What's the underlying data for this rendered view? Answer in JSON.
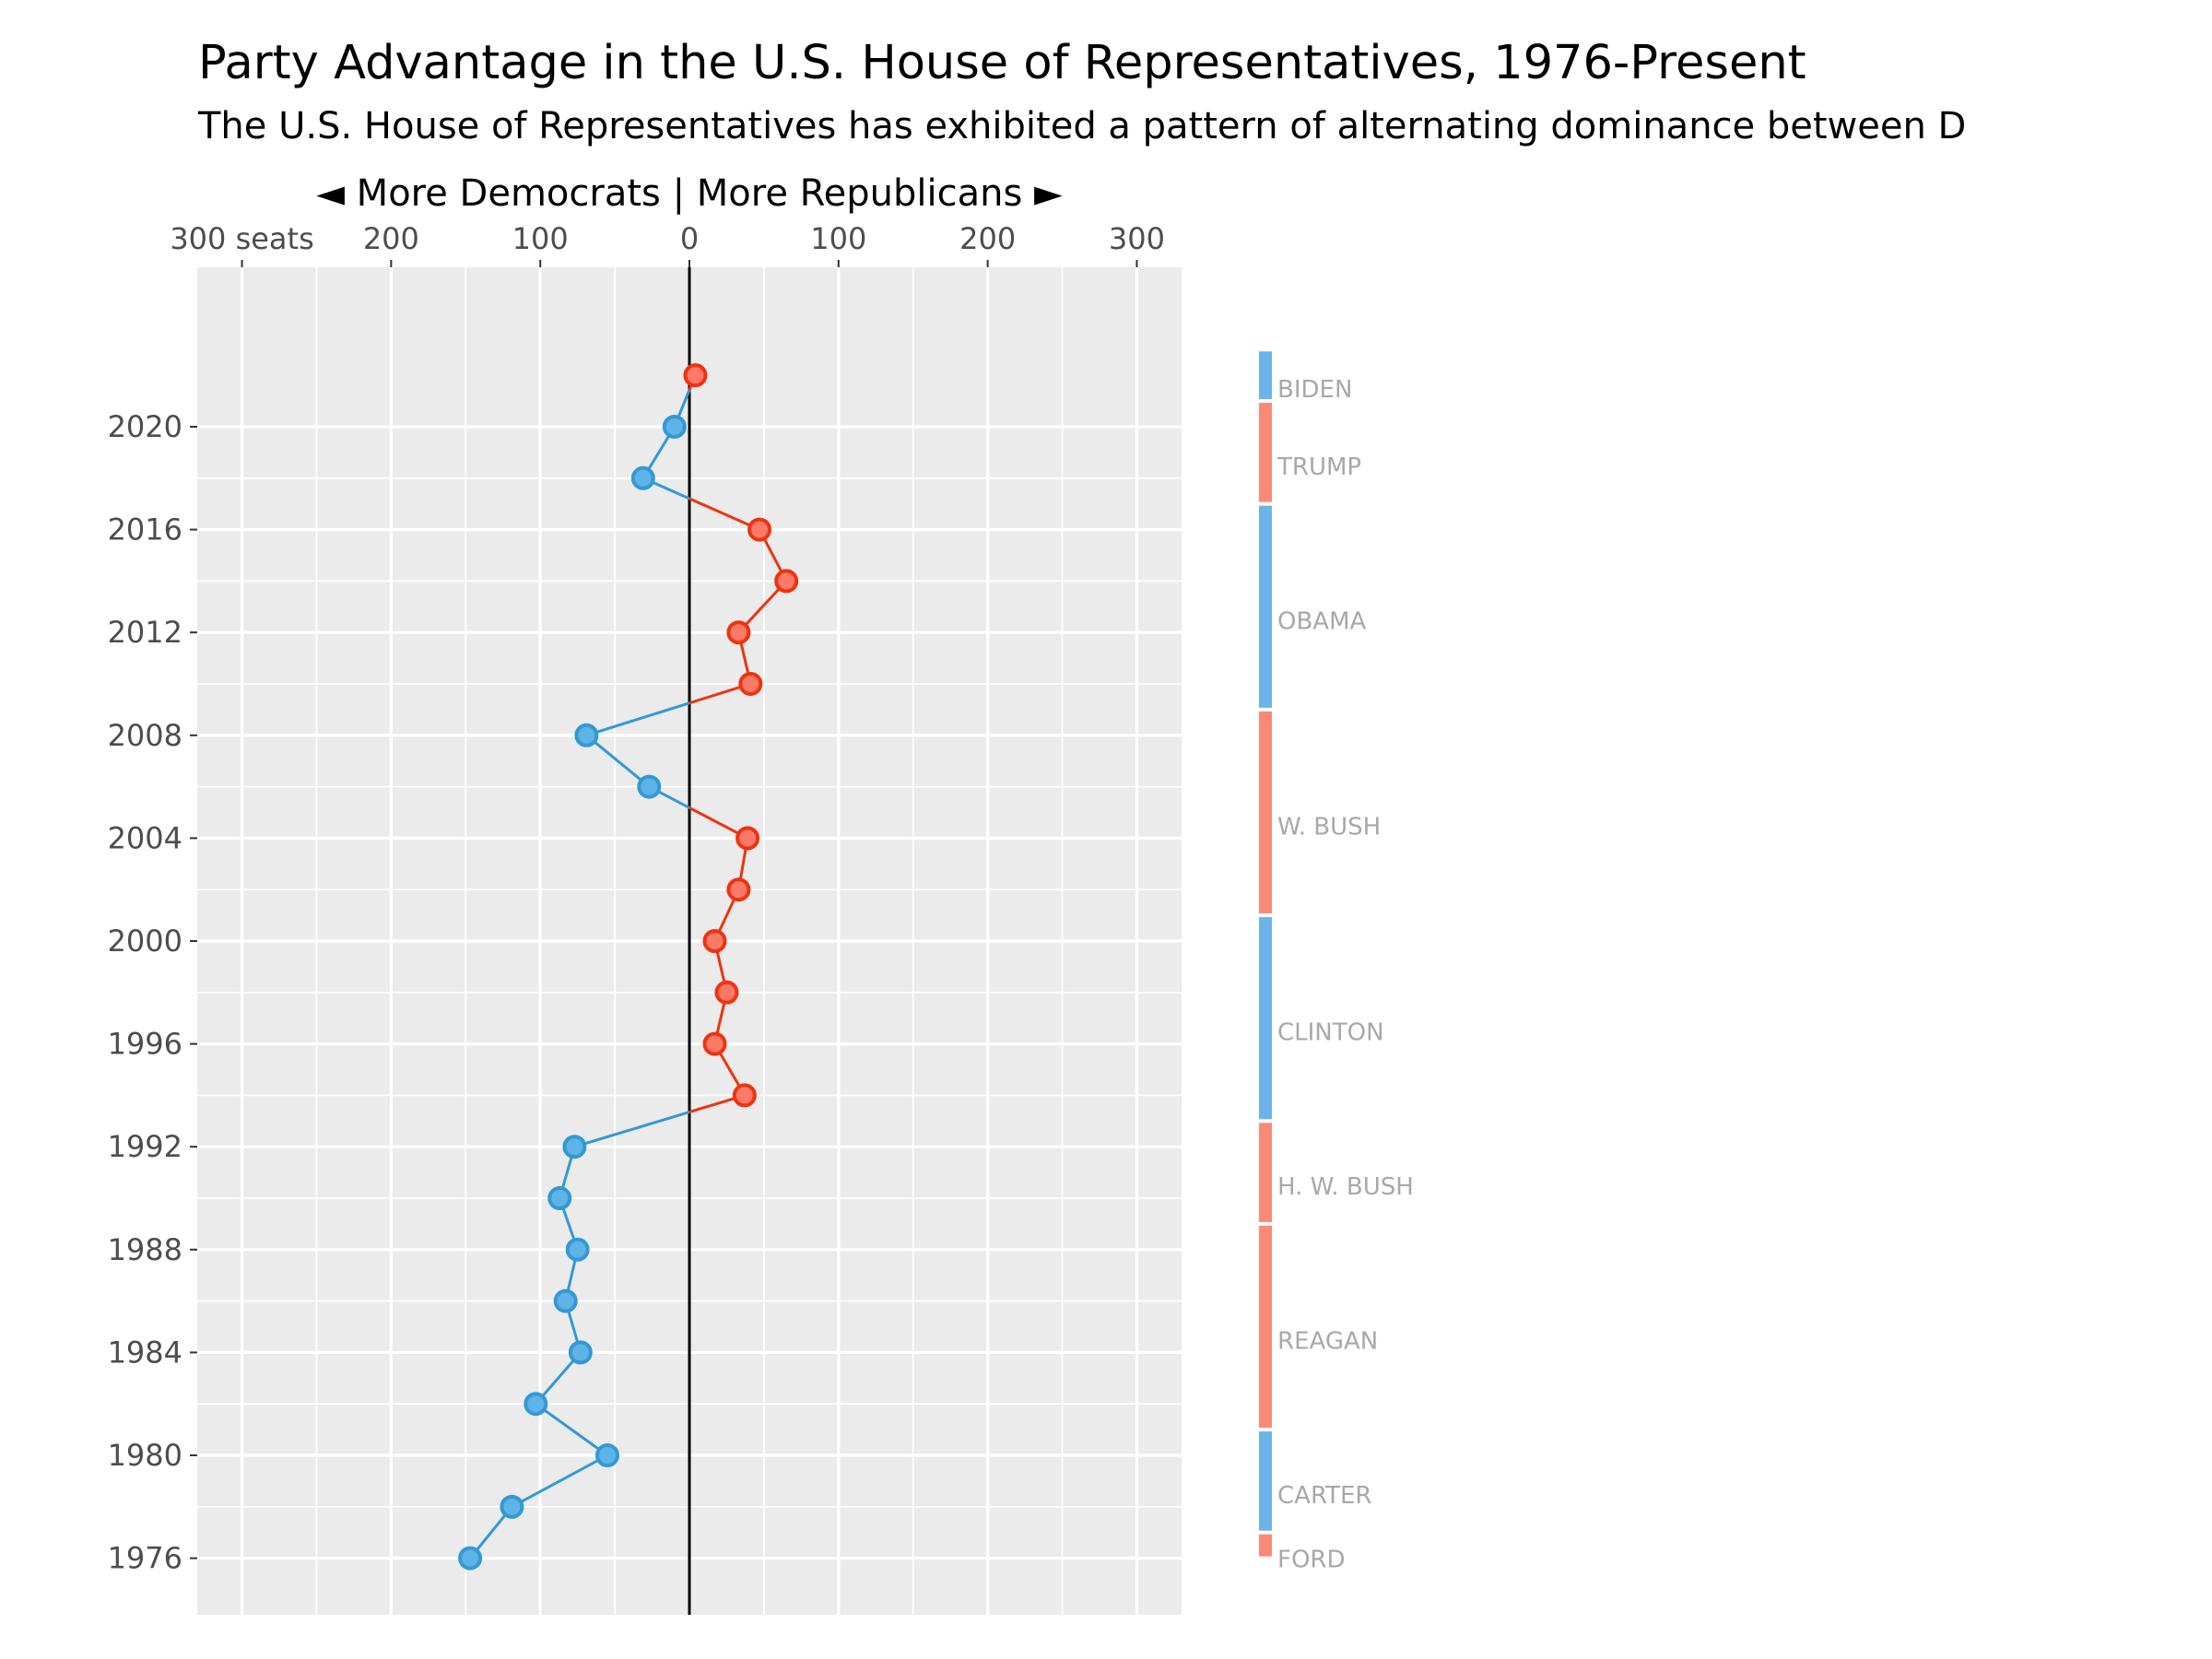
{
  "chart_data": {
    "type": "line",
    "title": "Party Advantage in the U.S. House of Representatives, 1976-Present",
    "subtitle": "The U.S. House of Representatives has exhibited a pattern of alternating dominance between D",
    "x_header": "◄ More Democrats | More Republicans ►",
    "x_tick_labels": [
      "300 seats",
      "200",
      "100",
      "0",
      "100",
      "200",
      "300"
    ],
    "x_tick_values": [
      -300,
      -200,
      -100,
      0,
      100,
      200,
      300
    ],
    "xlim": [
      -330,
      330
    ],
    "y_tick_labels": [
      "1976",
      "1980",
      "1984",
      "1988",
      "1992",
      "1996",
      "2000",
      "2004",
      "2008",
      "2012",
      "2016",
      "2020"
    ],
    "y_tick_values": [
      1976,
      1980,
      1984,
      1988,
      1992,
      1996,
      2000,
      2004,
      2008,
      2012,
      2016,
      2020
    ],
    "ylim": [
      1973.8,
      2026.2
    ],
    "grid": true,
    "colors": {
      "democrat_line": "#3399d4",
      "democrat_fill": "#5fb3e6",
      "republican_line": "#ee3311",
      "republican_fill": "#ff7a66",
      "democrat_president": "#6cb4e8",
      "republican_president": "#fa8a78",
      "panel_background": "#ebebeb",
      "gridline": "#ffffff",
      "zero_line": "#000000"
    },
    "series": [
      {
        "values": [
          {
            "year": 1976,
            "advantage": -147
          },
          {
            "year": 1978,
            "advantage": -119
          },
          {
            "year": 1980,
            "advantage": -55
          },
          {
            "year": 1982,
            "advantage": -103
          },
          {
            "year": 1984,
            "advantage": -73
          },
          {
            "year": 1986,
            "advantage": -83
          },
          {
            "year": 1988,
            "advantage": -75
          },
          {
            "year": 1990,
            "advantage": -87
          },
          {
            "year": 1992,
            "advantage": -77
          },
          {
            "year": 1994,
            "advantage": 37
          },
          {
            "year": 1996,
            "advantage": 17
          },
          {
            "year": 1998,
            "advantage": 25
          },
          {
            "year": 2000,
            "advantage": 17
          },
          {
            "year": 2002,
            "advantage": 33
          },
          {
            "year": 2004,
            "advantage": 39
          },
          {
            "year": 2006,
            "advantage": -27
          },
          {
            "year": 2008,
            "advantage": -69
          },
          {
            "year": 2010,
            "advantage": 41
          },
          {
            "year": 2012,
            "advantage": 33
          },
          {
            "year": 2014,
            "advantage": 65
          },
          {
            "year": 2016,
            "advantage": 47
          },
          {
            "year": 2018,
            "advantage": -31
          },
          {
            "year": 2020,
            "advantage": -10
          },
          {
            "year": 2022,
            "advantage": 4
          }
        ]
      }
    ],
    "presidents": [
      {
        "name": "FORD",
        "party": "R",
        "start": 1976,
        "end": 1977
      },
      {
        "name": "CARTER",
        "party": "D",
        "start": 1977,
        "end": 1981
      },
      {
        "name": "REAGAN",
        "party": "R",
        "start": 1981,
        "end": 1989
      },
      {
        "name": "H. W. BUSH",
        "party": "R",
        "start": 1989,
        "end": 1993
      },
      {
        "name": "CLINTON",
        "party": "D",
        "start": 1993,
        "end": 2001
      },
      {
        "name": "W. BUSH",
        "party": "R",
        "start": 2001,
        "end": 2009
      },
      {
        "name": "OBAMA",
        "party": "D",
        "start": 2009,
        "end": 2017
      },
      {
        "name": "TRUMP",
        "party": "R",
        "start": 2017,
        "end": 2021
      },
      {
        "name": "BIDEN",
        "party": "D",
        "start": 2021,
        "end": 2023
      }
    ]
  }
}
